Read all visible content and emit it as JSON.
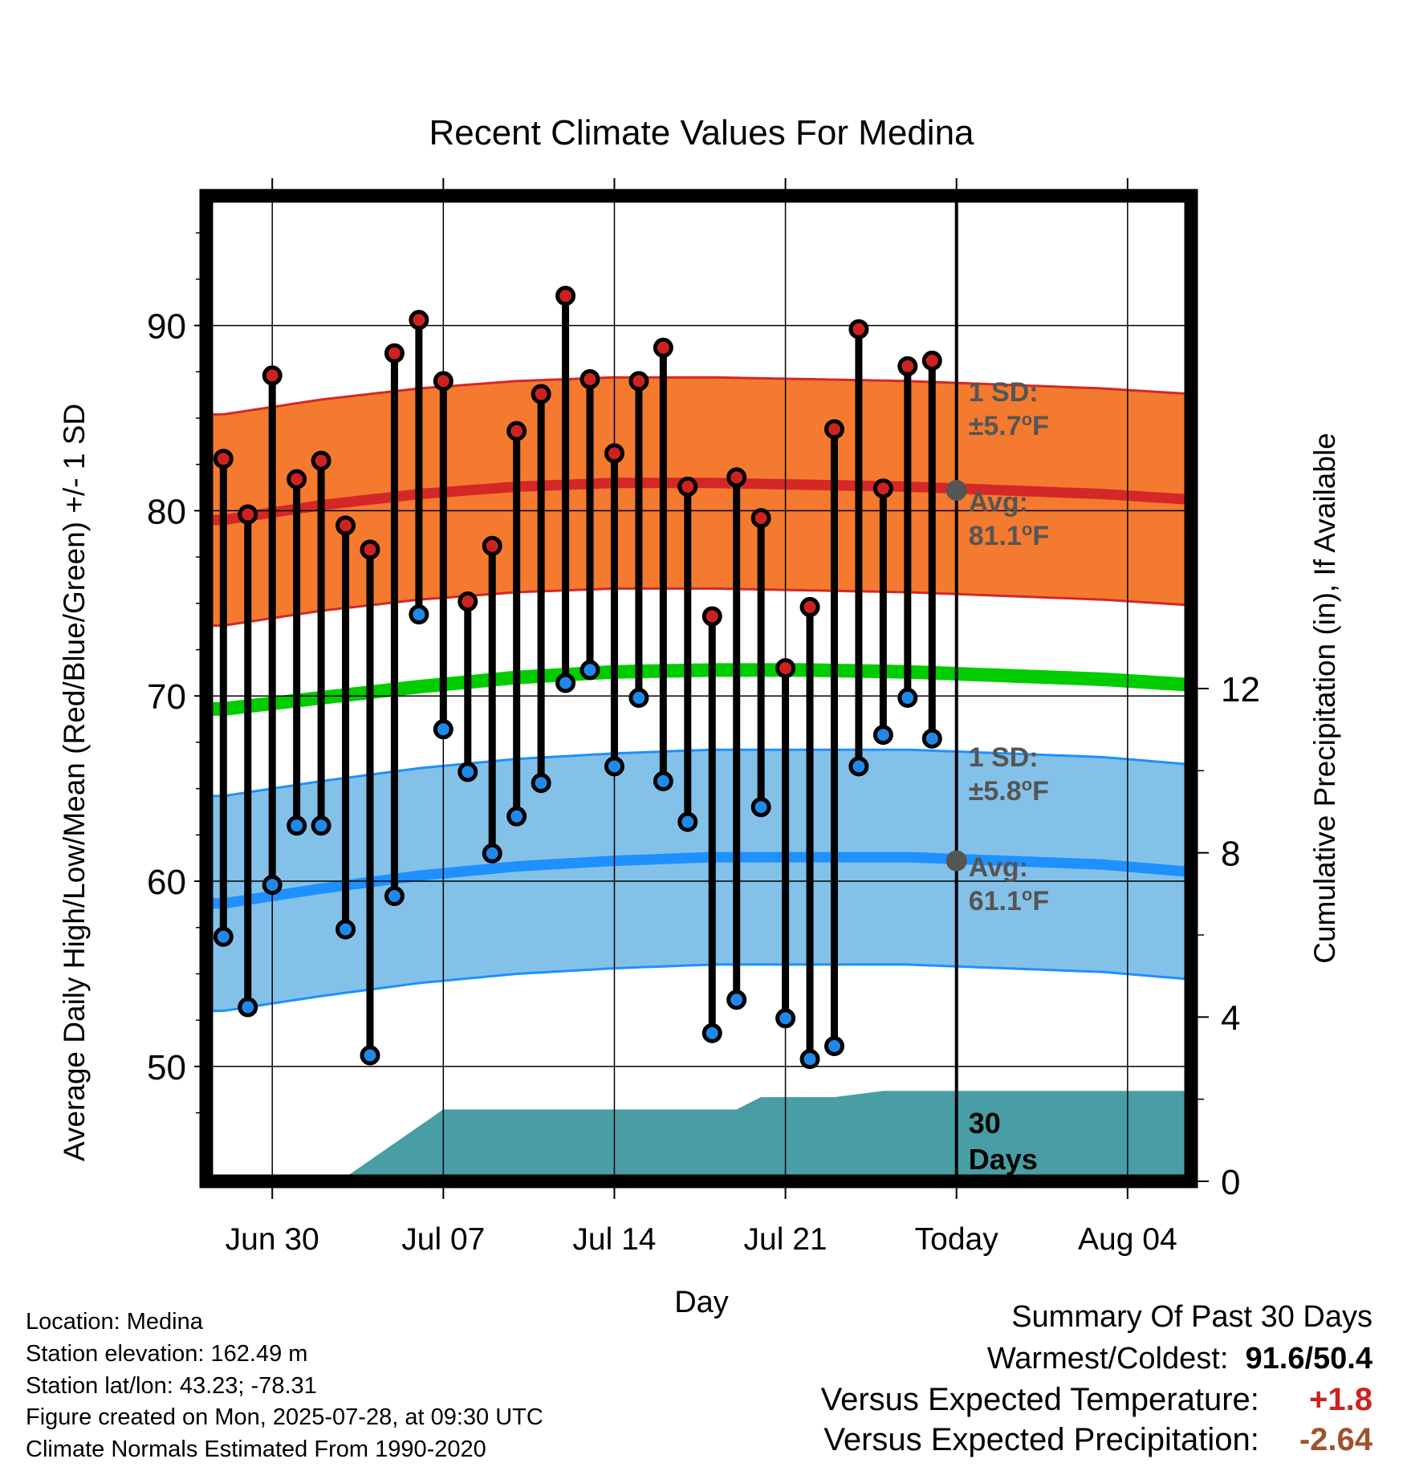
{
  "chart_data": {
    "type": "line",
    "title": "Recent Climate Values For Medina",
    "xlabel": "Day",
    "ylabel": "Average Daily High/Low/Mean (Red/Blue/Green) +/- 1 SD",
    "ylabel_right": "Cumulative Precipitation (in), If Available",
    "x_ticks": [
      "Jun 30",
      "Jul 07",
      "Jul 14",
      "Jul 21",
      "Today",
      "Aug 04"
    ],
    "x_tick_days": [
      2,
      9,
      16,
      23,
      30,
      37
    ],
    "xlim": [
      -0.7,
      39.6
    ],
    "ylim": [
      43.8,
      97
    ],
    "y_ticks": [
      50,
      60,
      70,
      80,
      90
    ],
    "y2lim": [
      0,
      24
    ],
    "y2_ticks": [
      0,
      4,
      8,
      12
    ],
    "today_day": 30,
    "days_label": [
      "30",
      "Days"
    ],
    "normals": {
      "days": [
        0,
        4,
        8,
        12,
        16,
        20,
        24,
        28,
        32,
        36,
        39.6
      ],
      "high_avg": [
        79.5,
        80.3,
        80.9,
        81.3,
        81.5,
        81.5,
        81.4,
        81.3,
        81.1,
        80.9,
        80.6
      ],
      "low_avg": [
        58.8,
        59.6,
        60.3,
        60.8,
        61.1,
        61.3,
        61.3,
        61.3,
        61.1,
        60.9,
        60.5
      ],
      "mean_avg": [
        69.3,
        69.9,
        70.5,
        71.0,
        71.3,
        71.4,
        71.4,
        71.3,
        71.1,
        70.9,
        70.6
      ],
      "high_sd": 5.7,
      "low_sd": 5.8
    },
    "annotations": {
      "high_sd": [
        "1 SD:",
        "±5.7°F"
      ],
      "high_avg": [
        "Avg:",
        "81.1°F"
      ],
      "low_sd": [
        "1 SD:",
        "±5.8°F"
      ],
      "low_avg": [
        "Avg:",
        "61.1°F"
      ]
    },
    "series": [
      {
        "name": "High",
        "days": [
          0,
          1,
          2,
          3,
          4,
          5,
          6,
          7,
          8,
          9,
          10,
          11,
          12,
          13,
          14,
          15,
          16,
          17,
          18,
          19,
          20,
          21,
          22,
          23,
          24,
          25,
          26,
          27,
          28,
          29
        ],
        "values": [
          82.8,
          79.8,
          87.3,
          81.7,
          82.7,
          79.2,
          77.9,
          88.5,
          90.3,
          87.0,
          75.1,
          78.1,
          84.3,
          86.3,
          91.6,
          87.1,
          83.1,
          87.0,
          88.8,
          81.3,
          74.3,
          81.8,
          79.6,
          71.5,
          74.8,
          84.4,
          89.8,
          81.2,
          87.8,
          88.1
        ]
      },
      {
        "name": "Low",
        "days": [
          0,
          1,
          2,
          3,
          4,
          5,
          6,
          7,
          8,
          9,
          10,
          11,
          12,
          13,
          14,
          15,
          16,
          17,
          18,
          19,
          20,
          21,
          22,
          23,
          24,
          25,
          26,
          27,
          28,
          29
        ],
        "values": [
          57.0,
          53.2,
          59.8,
          63.0,
          63.0,
          57.4,
          50.6,
          59.2,
          74.4,
          68.2,
          65.9,
          61.5,
          63.5,
          65.3,
          70.7,
          71.4,
          66.2,
          69.9,
          65.4,
          63.2,
          51.8,
          53.6,
          64.0,
          52.6,
          50.4,
          51.1,
          66.2,
          67.9,
          69.9,
          67.7
        ]
      },
      {
        "name": "Cumulative Precipitation",
        "days": [
          0,
          3,
          5,
          9,
          21,
          22,
          25,
          27,
          30,
          39.6
        ],
        "values": [
          0.0,
          0.0,
          0.1,
          1.75,
          1.75,
          2.05,
          2.05,
          2.2,
          2.2,
          2.2
        ]
      }
    ],
    "colors": {
      "high_band": "#f47a30",
      "high_line": "#d42828",
      "low_band": "#84c1e8",
      "low_line": "#1e90ff",
      "mean_line": "#00cc00",
      "precip": "#489ea4",
      "high_dot": "#cc2222",
      "low_dot": "#2088e8",
      "annotation": "#555555",
      "positive": "#cc2222",
      "precip_anomaly": "#a0522d"
    }
  },
  "footer": {
    "location": "Location: Medina",
    "elevation": "Station elevation: 162.49 m",
    "latlon": "Station lat/lon: 43.23; -78.31",
    "created": "Figure created on Mon, 2025-07-28, at 09:30 UTC",
    "normals": "Climate Normals Estimated From 1990-2020"
  },
  "summary": {
    "heading": "Summary Of Past 30 Days",
    "warm_label": "Warmest/Coldest:",
    "warm_value": "91.6/50.4",
    "temp_label": "Versus Expected Temperature:",
    "temp_value": "+1.8",
    "precip_label": "Versus Expected Precipitation:",
    "precip_value": "-2.64"
  }
}
